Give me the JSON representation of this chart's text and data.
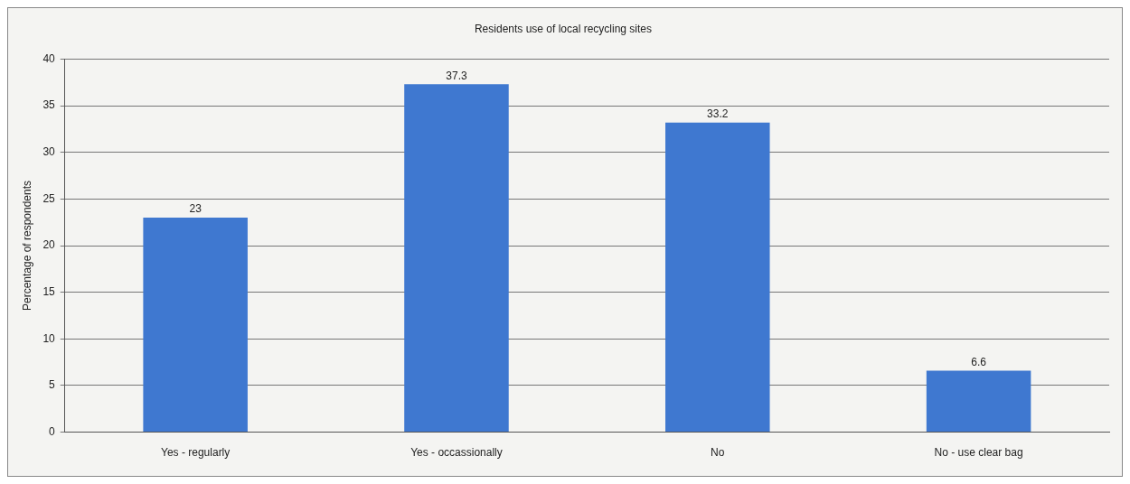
{
  "chart_data": {
    "type": "bar",
    "title": "Residents use of local recycling sites",
    "ylabel": "Percentage of respondents",
    "categories": [
      "Yes - regularly",
      "Yes - occassionally",
      "No",
      "No - use clear bag"
    ],
    "values": [
      23,
      37.3,
      33.2,
      6.6
    ],
    "color": "#3f78d0",
    "ylim": [
      0,
      40
    ],
    "yticks": [
      0,
      5,
      10,
      15,
      20,
      25,
      30,
      35,
      40
    ],
    "grid": "y",
    "data_labels": true,
    "legend": false
  }
}
